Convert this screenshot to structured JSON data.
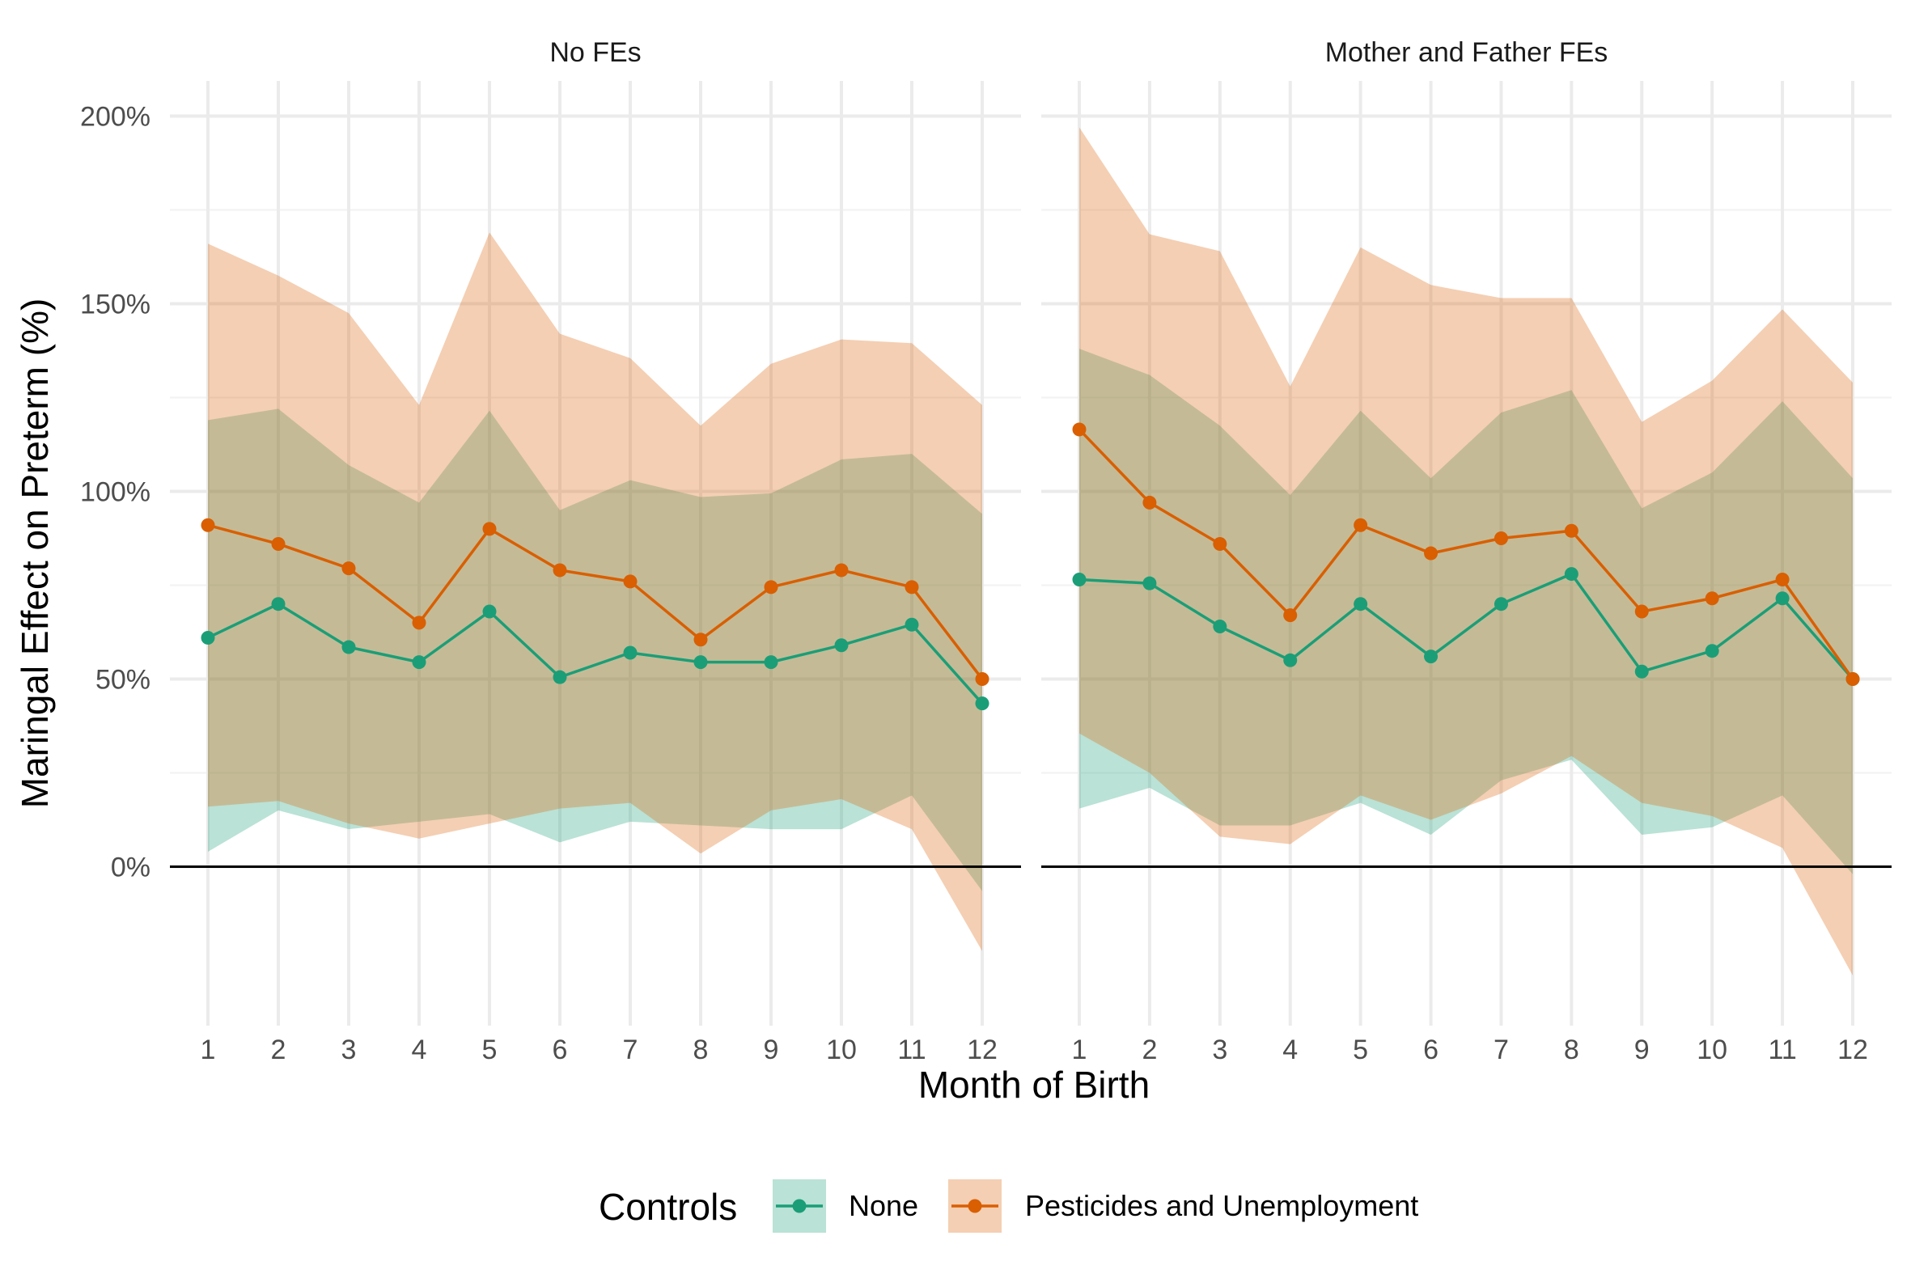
{
  "chart_data": {
    "type": "line",
    "xlabel": "Month of Birth",
    "ylabel": "Maringal Effect on Preterm (%)",
    "x": [
      1,
      2,
      3,
      4,
      5,
      6,
      7,
      8,
      9,
      10,
      11,
      12
    ],
    "x_tick_labels": [
      "1",
      "2",
      "3",
      "4",
      "5",
      "6",
      "7",
      "8",
      "9",
      "10",
      "11",
      "12"
    ],
    "ylim": [
      -42,
      210
    ],
    "y_ticks": [
      0,
      50,
      100,
      150,
      200
    ],
    "y_tick_labels": [
      "0%",
      "50%",
      "100%",
      "150%",
      "200%"
    ],
    "reference_line": 0,
    "grid": true,
    "legend": {
      "title": "Controls",
      "position": "bottom",
      "entries": [
        "None",
        "Pesticides and Unemployment"
      ]
    },
    "colors": {
      "None": "#1b9e77",
      "Pesticides and Unemployment": "#d95f02"
    },
    "panels": [
      {
        "title": "No FEs",
        "series": [
          {
            "name": "None",
            "values": [
              61,
              70,
              58.5,
              54.5,
              68,
              50.5,
              57,
              54.5,
              54.5,
              59,
              64.5,
              43.5
            ],
            "lower": [
              4,
              15,
              10,
              12,
              14,
              6.5,
              12,
              11,
              10,
              10,
              19,
              -6.5
            ],
            "upper": [
              119,
              122,
              107,
              97,
              121.5,
              95,
              103,
              98.5,
              99.5,
              108.5,
              110,
              94
            ]
          },
          {
            "name": "Pesticides and Unemployment",
            "values": [
              91,
              86,
              79.5,
              65,
              90,
              79,
              76,
              60.5,
              74.5,
              79,
              74.5,
              50
            ],
            "lower": [
              16,
              17.5,
              11.5,
              7.5,
              11.5,
              15.5,
              17,
              3.5,
              15,
              18,
              10,
              -22.5
            ],
            "upper": [
              166,
              157.5,
              147.5,
              123,
              169,
              142,
              135.5,
              117.5,
              134,
              140.5,
              139.5,
              123
            ]
          }
        ]
      },
      {
        "title": "Mother and Father FEs",
        "series": [
          {
            "name": "None",
            "values": [
              76.5,
              75.5,
              64,
              55,
              70,
              56,
              70,
              78,
              52,
              57.5,
              71.5,
              50
            ],
            "lower": [
              15.5,
              21,
              11,
              11,
              17,
              8.5,
              23,
              28.5,
              8.5,
              10.5,
              19,
              -2
            ],
            "upper": [
              138,
              131,
              117.5,
              99,
              121.5,
              103.5,
              121,
              127,
              95.5,
              105,
              124,
              103.5
            ]
          },
          {
            "name": "Pesticides and Unemployment",
            "values": [
              116.5,
              97,
              86,
              67,
              91,
              83.5,
              87.5,
              89.5,
              68,
              71.5,
              76.5,
              50
            ],
            "lower": [
              35.5,
              25,
              8,
              6,
              19,
              12.5,
              19.5,
              29.5,
              17,
              13.5,
              5,
              -29
            ],
            "upper": [
              197,
              168.5,
              164,
              128,
              165,
              155,
              151.5,
              151.5,
              118.5,
              129.5,
              148.5,
              129
            ]
          }
        ]
      }
    ]
  }
}
